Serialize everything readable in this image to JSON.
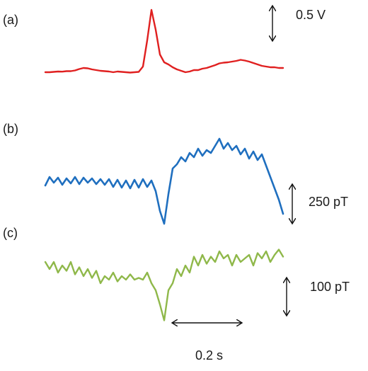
{
  "chart_data": {
    "type": "line",
    "x_unit": "s",
    "x": [
      0.0,
      0.012,
      0.024,
      0.036,
      0.048,
      0.06,
      0.072,
      0.084,
      0.096,
      0.108,
      0.12,
      0.132,
      0.144,
      0.156,
      0.168,
      0.18,
      0.192,
      0.204,
      0.216,
      0.228,
      0.24,
      0.252,
      0.264,
      0.276,
      0.288,
      0.3,
      0.312,
      0.324,
      0.336,
      0.348,
      0.36,
      0.372,
      0.384,
      0.396,
      0.408,
      0.42,
      0.432,
      0.444,
      0.456,
      0.468,
      0.48,
      0.492,
      0.504,
      0.516,
      0.528,
      0.54,
      0.552,
      0.564,
      0.576,
      0.588,
      0.6,
      0.612,
      0.624,
      0.636,
      0.648,
      0.66,
      0.672
    ],
    "panels": [
      {
        "label": "(a)",
        "scale_label": "0.5 V",
        "color": "#e02020",
        "unit": "V",
        "values": [
          0.0,
          0.0,
          0.005,
          0.01,
          0.008,
          0.015,
          0.015,
          0.025,
          0.045,
          0.06,
          0.055,
          0.04,
          0.03,
          0.02,
          0.015,
          0.01,
          0.0,
          0.01,
          0.005,
          0.0,
          -0.005,
          0.0,
          0.005,
          0.08,
          0.45,
          0.88,
          0.6,
          0.25,
          0.14,
          0.11,
          0.07,
          0.04,
          0.02,
          0.0,
          0.01,
          0.03,
          0.03,
          0.05,
          0.06,
          0.08,
          0.1,
          0.125,
          0.135,
          0.14,
          0.15,
          0.16,
          0.175,
          0.165,
          0.15,
          0.13,
          0.11,
          0.09,
          0.08,
          0.07,
          0.07,
          0.06,
          0.06
        ]
      },
      {
        "label": "(b)",
        "scale_label": "250 pT",
        "color": "#1f6fbf",
        "unit": "pT",
        "values": [
          0,
          60,
          20,
          55,
          5,
          50,
          15,
          60,
          10,
          55,
          20,
          50,
          10,
          45,
          5,
          45,
          -10,
          40,
          -15,
          35,
          -20,
          40,
          -15,
          45,
          -10,
          35,
          -40,
          -180,
          -270,
          -60,
          120,
          150,
          200,
          170,
          230,
          200,
          260,
          210,
          250,
          230,
          280,
          330,
          260,
          300,
          250,
          280,
          220,
          260,
          190,
          240,
          180,
          220,
          140,
          60,
          -20,
          -100,
          -200
        ]
      },
      {
        "label": "(c)",
        "scale_label": "100 pT",
        "color": "#8fb84a",
        "unit": "pT",
        "values": [
          0,
          -20,
          0,
          -30,
          -10,
          -25,
          0,
          -35,
          -15,
          -40,
          -20,
          -45,
          -25,
          -60,
          -40,
          -50,
          -30,
          -55,
          -40,
          -50,
          -35,
          -50,
          -45,
          -50,
          -30,
          -60,
          -80,
          -120,
          -165,
          -80,
          -60,
          -20,
          -40,
          -10,
          -30,
          15,
          -10,
          20,
          -5,
          15,
          0,
          30,
          10,
          20,
          -10,
          20,
          0,
          10,
          20,
          -10,
          25,
          10,
          30,
          0,
          20,
          35,
          15
        ]
      }
    ],
    "scale_bars": {
      "time": "0.2 s"
    }
  }
}
